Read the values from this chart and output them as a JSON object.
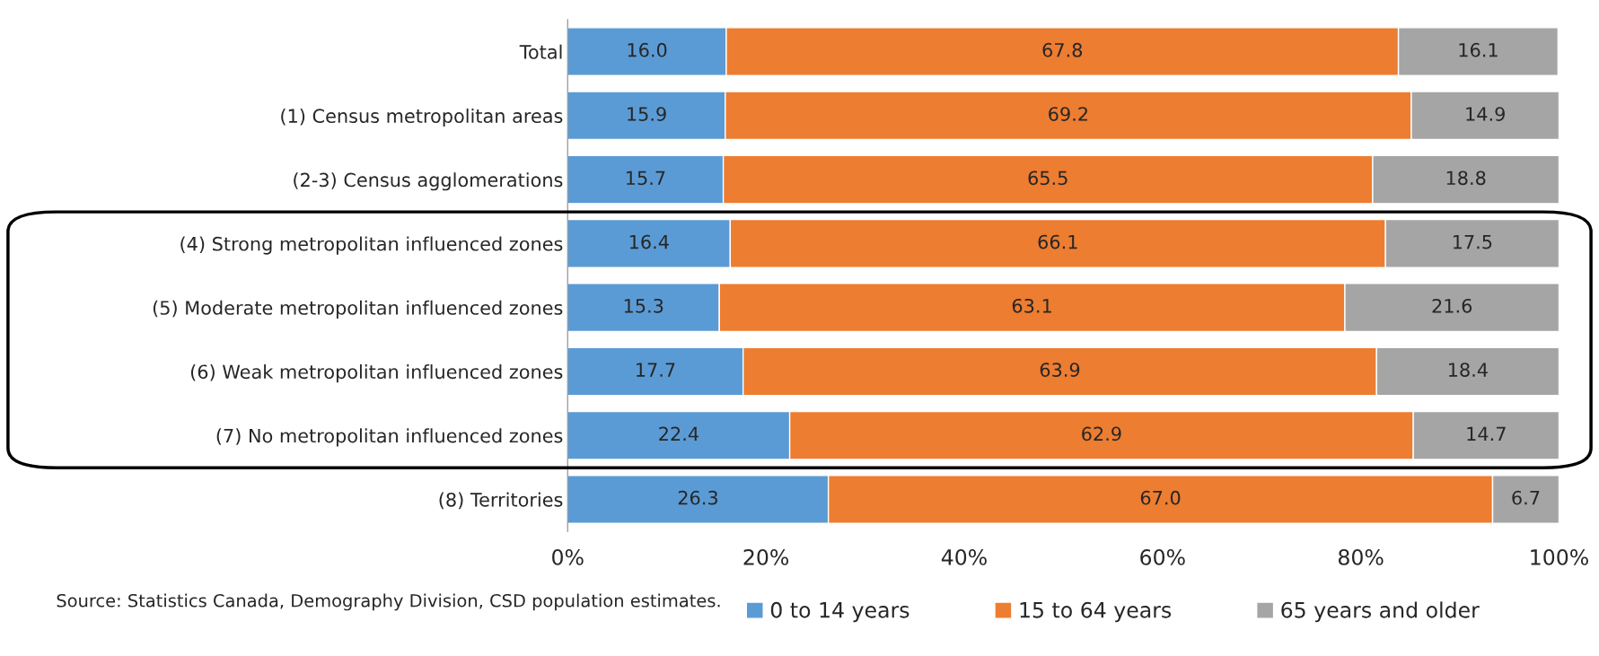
{
  "chart_data": {
    "type": "bar",
    "orientation": "horizontal",
    "stacked": true,
    "categories": [
      "Total",
      "(1) Census metropolitan areas",
      "(2-3) Census agglomerations",
      "(4) Strong metropolitan influenced zones",
      "(5) Moderate metropolitan influenced zones",
      "(6) Weak metropolitan influenced zones",
      "(7) No metropolitan influenced zones",
      "(8) Territories"
    ],
    "series": [
      {
        "name": "0 to 14 years",
        "color": "#5b9bd5",
        "values": [
          16.0,
          15.9,
          15.7,
          16.4,
          15.3,
          17.7,
          22.4,
          26.3
        ],
        "value_labels": [
          "16.0",
          "15.9",
          "15.7",
          "16.4",
          "15.3",
          "17.7",
          "22.4",
          "26.3"
        ]
      },
      {
        "name": "15 to 64 years",
        "color": "#ed7d31",
        "values": [
          67.8,
          69.2,
          65.5,
          66.1,
          63.1,
          63.9,
          62.9,
          67.0
        ],
        "value_labels": [
          "67.8",
          "69.2",
          "65.5",
          "66.1",
          "63.1",
          "63.9",
          "62.9",
          "67.0"
        ]
      },
      {
        "name": "65 years and older",
        "color": "#a5a5a5",
        "values": [
          16.1,
          14.9,
          18.8,
          17.5,
          21.6,
          18.4,
          14.7,
          6.7
        ],
        "value_labels": [
          "16.1",
          "14.9",
          "18.8",
          "17.5",
          "21.6",
          "18.4",
          "14.7",
          "6.7"
        ]
      }
    ],
    "xlim": [
      0,
      100
    ],
    "xticks": [
      {
        "value": 0,
        "label": "0%"
      },
      {
        "value": 20,
        "label": "20%"
      },
      {
        "value": 40,
        "label": "40%"
      },
      {
        "value": 60,
        "label": "60%"
      },
      {
        "value": 80,
        "label": "80%"
      },
      {
        "value": 100,
        "label": "100%"
      }
    ],
    "grid": false,
    "legend": "bottom",
    "annotations": [
      "Source: Statistics Canada, Demography Division, CSD population estimates."
    ]
  }
}
